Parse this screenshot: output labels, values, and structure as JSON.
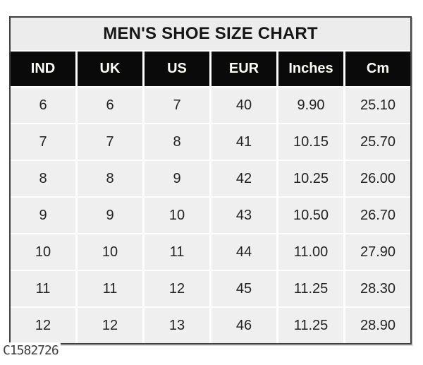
{
  "title": "MEN'S SHOE SIZE CHART",
  "watermark": "C1582726",
  "colors": {
    "header_bg": "#0a0a0a",
    "header_text": "#ffffff",
    "title_bg": "#ececec",
    "cell_bg": "#efefef",
    "grid_gap": "#ffffff",
    "outer_border": "#3e3e3e",
    "body_text": "#232323",
    "watermark_text": "#3c3c3c"
  },
  "chart_data": {
    "type": "table",
    "title": "MEN'S SHOE SIZE CHART",
    "columns": [
      "IND",
      "UK",
      "US",
      "EUR",
      "Inches",
      "Cm"
    ],
    "rows": [
      [
        "6",
        "6",
        "7",
        "40",
        "9.90",
        "25.10"
      ],
      [
        "7",
        "7",
        "8",
        "41",
        "10.15",
        "25.70"
      ],
      [
        "8",
        "8",
        "9",
        "42",
        "10.25",
        "26.00"
      ],
      [
        "9",
        "9",
        "10",
        "43",
        "10.50",
        "26.70"
      ],
      [
        "10",
        "10",
        "11",
        "44",
        "11.00",
        "27.90"
      ],
      [
        "11",
        "11",
        "12",
        "45",
        "11.25",
        "28.30"
      ],
      [
        "12",
        "12",
        "13",
        "46",
        "11.25",
        "28.90"
      ]
    ],
    "layout": {
      "header_style": "black-cells-white-text",
      "grid": "white gaps between light gray cells",
      "title_position": "top center"
    }
  }
}
